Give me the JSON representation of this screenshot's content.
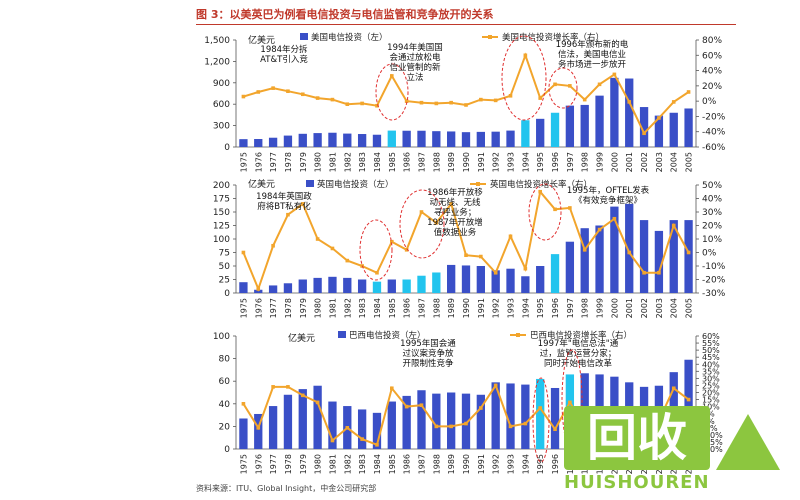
{
  "figure": {
    "title": "图 3：以美英巴为例看电信投资与电信监管和竞争放开的关系",
    "source": "资料来源：ITU、Global Insight，中金公司研究部"
  },
  "colors": {
    "bar": "#3a4fc7",
    "bar_highlight": "#22c4ee",
    "line": "#f2a52c",
    "ellipse": "#e03030"
  },
  "watermark": {
    "logo": "回收",
    "text": "HUISHOUREN"
  },
  "chart_data": [
    {
      "type": "bar",
      "unit_label": "亿美元",
      "categories": [
        "1975",
        "1976",
        "1977",
        "1978",
        "1979",
        "1980",
        "1981",
        "1982",
        "1983",
        "1984",
        "1985",
        "1986",
        "1987",
        "1988",
        "1989",
        "1990",
        "1991",
        "1992",
        "1993",
        "1994",
        "1995",
        "1996",
        "1997",
        "1998",
        "1999",
        "2000",
        "2001",
        "2002",
        "2003",
        "2004",
        "2005"
      ],
      "series": [
        {
          "name": "美国电信投资（左）",
          "axis": "left",
          "kind": "bar",
          "values": [
            110,
            112,
            130,
            160,
            185,
            195,
            200,
            188,
            182,
            172,
            230,
            228,
            228,
            222,
            218,
            208,
            212,
            215,
            230,
            375,
            395,
            480,
            580,
            590,
            720,
            970,
            960,
            560,
            440,
            480,
            540
          ],
          "highlight": [
            10,
            19,
            21
          ]
        },
        {
          "name": "美国电信投资增长率（右）",
          "axis": "right",
          "kind": "line",
          "values": [
            6,
            12,
            17,
            13,
            9,
            4,
            2,
            -4,
            -3,
            -6,
            33,
            0,
            -2,
            -3,
            -2,
            -5,
            2,
            1,
            7,
            60,
            4,
            22,
            20,
            2,
            22,
            35,
            -1,
            -42,
            -22,
            -1,
            12
          ]
        }
      ],
      "ylim_left": [
        0,
        1500
      ],
      "yticks_left": [
        "0",
        "300",
        "600",
        "900",
        "1,200",
        "1,500"
      ],
      "ylim_right": [
        -60,
        80
      ],
      "yticks_right": [
        "-60%",
        "-40%",
        "-20%",
        "0%",
        "20%",
        "40%",
        "60%",
        "80%"
      ],
      "annotations": [
        {
          "text": [
            "1984年分拆",
            "AT&T引入竞"
          ],
          "x_index": 10
        },
        {
          "text": [
            "1994年美国国",
            "会通过放松电",
            "信业管制的新",
            "立法"
          ],
          "x_index": 19
        },
        {
          "text": [
            "1996年颁布新的电",
            "信法，美国电信业",
            "务市场进一步放开"
          ],
          "x_index": 21
        }
      ]
    },
    {
      "type": "bar",
      "unit_label": "亿美元",
      "categories": [
        "1975",
        "1976",
        "1977",
        "1978",
        "1979",
        "1980",
        "1981",
        "1982",
        "1983",
        "1984",
        "1985",
        "1986",
        "1987",
        "1988",
        "1989",
        "1990",
        "1991",
        "1992",
        "1993",
        "1994",
        "1995",
        "1996",
        "1997",
        "1998",
        "1999",
        "2000",
        "2001",
        "2002",
        "2003",
        "2004",
        "2005"
      ],
      "series": [
        {
          "name": "英国电信投资（左）",
          "axis": "left",
          "kind": "bar",
          "values": [
            20,
            6,
            14,
            18,
            25,
            28,
            30,
            28,
            25,
            21,
            25,
            25,
            32,
            38,
            52,
            51,
            50,
            42,
            45,
            31,
            50,
            72,
            95,
            120,
            125,
            160,
            165,
            135,
            115,
            135,
            135
          ],
          "highlight": [
            9,
            11,
            12,
            13,
            21
          ]
        },
        {
          "name": "英国电信投资增长率（右）",
          "axis": "right",
          "kind": "line",
          "values": [
            0,
            -27,
            5,
            28,
            36,
            10,
            3,
            -6,
            -10,
            -15,
            8,
            2,
            30,
            22,
            36,
            -2,
            -3,
            -15,
            12,
            -12,
            45,
            32,
            33,
            2,
            17,
            25,
            0,
            -15,
            -15,
            20,
            0
          ]
        }
      ],
      "ylim_left": [
        0,
        200
      ],
      "yticks_left": [
        "0",
        "25",
        "50",
        "75",
        "100",
        "125",
        "150",
        "175",
        "200"
      ],
      "ylim_right": [
        -30,
        50
      ],
      "yticks_right": [
        "-30%",
        "-20%",
        "-10%",
        "0%",
        "10%",
        "20%",
        "30%",
        "40%",
        "50%"
      ],
      "annotations": [
        {
          "text": [
            "1984年英国政",
            "府将BT私有化"
          ],
          "x_index": 9
        },
        {
          "text": [
            "1986年开放移",
            "动无线、无线",
            "寻呼业务；",
            "1987年开放增",
            "值数据业务"
          ],
          "x_index": 12
        },
        {
          "text": [
            "1995年，OFTEL发表",
            "《有效竞争框架》"
          ],
          "x_index": 21
        }
      ]
    },
    {
      "type": "bar",
      "unit_label": "亿美元",
      "categories": [
        "1975",
        "1976",
        "1977",
        "1978",
        "1979",
        "1980",
        "1981",
        "1982",
        "1983",
        "1984",
        "1985",
        "1986",
        "1987",
        "1988",
        "1989",
        "1990",
        "1991",
        "1992",
        "1993",
        "1994",
        "1995",
        "1996",
        "1997",
        "1998",
        "1999",
        "2000",
        "2001",
        "2002",
        "2003",
        "2004",
        "2005"
      ],
      "series": [
        {
          "name": "巴西电信投资（左）",
          "axis": "left",
          "kind": "bar",
          "values": [
            27,
            31,
            38,
            48,
            53,
            56,
            42,
            38,
            35,
            32,
            42,
            47,
            52,
            49,
            50,
            49,
            48,
            59,
            58,
            57,
            62,
            54,
            66,
            67,
            66,
            64,
            59,
            55,
            56,
            68,
            79
          ],
          "highlight": [
            20,
            22
          ]
        },
        {
          "name": "巴西电信投资增长率（右）",
          "axis": "right",
          "kind": "line",
          "values": [
            12,
            -5,
            24,
            24,
            18,
            13,
            -14,
            -5,
            -13,
            -17,
            23,
            10,
            11,
            -4,
            -4,
            -2,
            9,
            25,
            -4,
            -2,
            9,
            -6,
            13,
            -4,
            -6,
            -5,
            -7,
            -8,
            0,
            23,
            15
          ]
        }
      ],
      "ylim_left": [
        0,
        100
      ],
      "yticks_left": [
        "0",
        "20",
        "40",
        "60",
        "80",
        "100"
      ],
      "ylim_right": [
        -20,
        60
      ],
      "yticks_right": [
        "-20%",
        "-15%",
        "-10%",
        "-5%",
        "0%",
        "5%",
        "10%",
        "15%",
        "20%",
        "25%",
        "30%",
        "35%",
        "40%",
        "45%",
        "50%",
        "55%",
        "60%"
      ],
      "annotations": [
        {
          "text": [
            "1995年国会通",
            "过议案竞争放",
            "开限制性竞争"
          ],
          "x_index": 20
        },
        {
          "text": [
            "1997年\"电信总法\"通",
            "过，监管运营分家；",
            "同时开始电信改革"
          ],
          "x_index": 22
        }
      ]
    }
  ]
}
